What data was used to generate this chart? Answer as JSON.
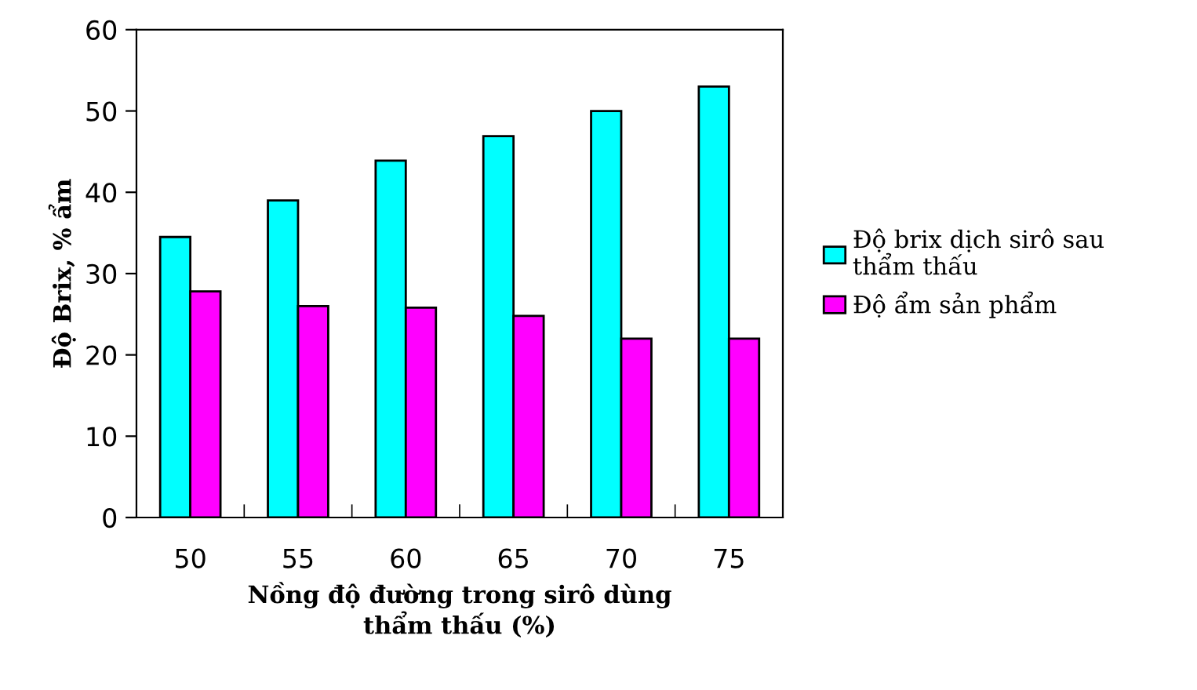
{
  "chart_data": {
    "type": "bar",
    "xlabel": "Nồng độ đường trong sirô dùng\nthẩm thấu (%)",
    "ylabel": "Độ Brix, % ẩm",
    "categories": [
      "50",
      "55",
      "60",
      "65",
      "70",
      "75"
    ],
    "series": [
      {
        "name": "Độ brix dịch sirô sau\nthẩm thấu",
        "color": "#00ffff",
        "values": [
          34.5,
          39,
          43.9,
          46.9,
          50,
          53
        ]
      },
      {
        "name": "Độ ẩm sản phẩm",
        "color": "#ff00ff",
        "values": [
          27.8,
          26,
          25.8,
          24.8,
          22,
          22
        ]
      }
    ],
    "ylim": [
      0,
      60
    ],
    "yticks": [
      0,
      10,
      20,
      30,
      40,
      50,
      60
    ],
    "grid": false,
    "legend": "right"
  }
}
